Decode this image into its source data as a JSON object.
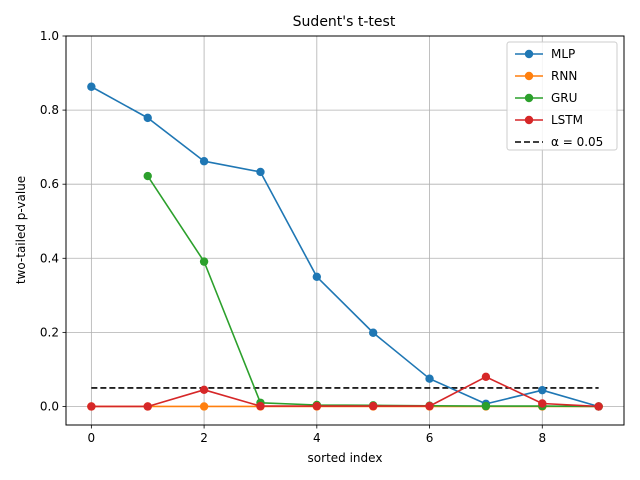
{
  "chart_data": {
    "type": "line",
    "title": "Sudent's t-test",
    "xlabel": "sorted index",
    "ylabel": "two-tailed p-value",
    "xlim": [
      -0.45,
      9.45
    ],
    "ylim": [
      -0.05,
      1.0
    ],
    "xticks": [
      0,
      2,
      4,
      6,
      8
    ],
    "xtick_labels": [
      "0",
      "2",
      "4",
      "6",
      "8"
    ],
    "yticks": [
      0.0,
      0.2,
      0.4,
      0.6,
      0.8,
      1.0
    ],
    "ytick_labels": [
      "0.0",
      "0.2",
      "0.4",
      "0.6",
      "0.8",
      "1.0"
    ],
    "grid": true,
    "legend_position": "top-right",
    "series": [
      {
        "name": "MLP",
        "color": "#1f77b4",
        "marker": "circle",
        "x": [
          0,
          1,
          2,
          3,
          4,
          5,
          6,
          7,
          8,
          9
        ],
        "y": [
          0.863,
          0.779,
          0.662,
          0.633,
          0.35,
          0.199,
          0.075,
          0.007,
          0.044,
          0.0
        ]
      },
      {
        "name": "RNN",
        "color": "#ff7f0e",
        "marker": "circle",
        "x": [
          0,
          1,
          2,
          3,
          4,
          5,
          6,
          7,
          8,
          9
        ],
        "y": [
          0.0,
          0.0,
          0.0,
          0.0,
          0.0,
          0.0,
          0.0,
          0.0,
          0.0,
          0.0
        ]
      },
      {
        "name": "GRU",
        "color": "#2ca02c",
        "marker": "circle",
        "x": [
          1,
          2,
          3,
          4,
          5,
          6,
          7,
          8,
          9
        ],
        "y": [
          0.622,
          0.391,
          0.01,
          0.004,
          0.003,
          0.002,
          0.001,
          0.001,
          0.0
        ]
      },
      {
        "name": "LSTM",
        "color": "#d62728",
        "marker": "circle",
        "x": [
          0,
          1,
          2,
          3,
          4,
          5,
          6,
          7,
          8,
          9
        ],
        "y": [
          0.0,
          0.0,
          0.045,
          0.001,
          0.001,
          0.001,
          0.001,
          0.08,
          0.008,
          0.0
        ]
      }
    ],
    "reference_line": {
      "label": "α = 0.05",
      "y": 0.05,
      "x_range": [
        0,
        9
      ],
      "color": "#000000",
      "style": "dashed"
    }
  }
}
